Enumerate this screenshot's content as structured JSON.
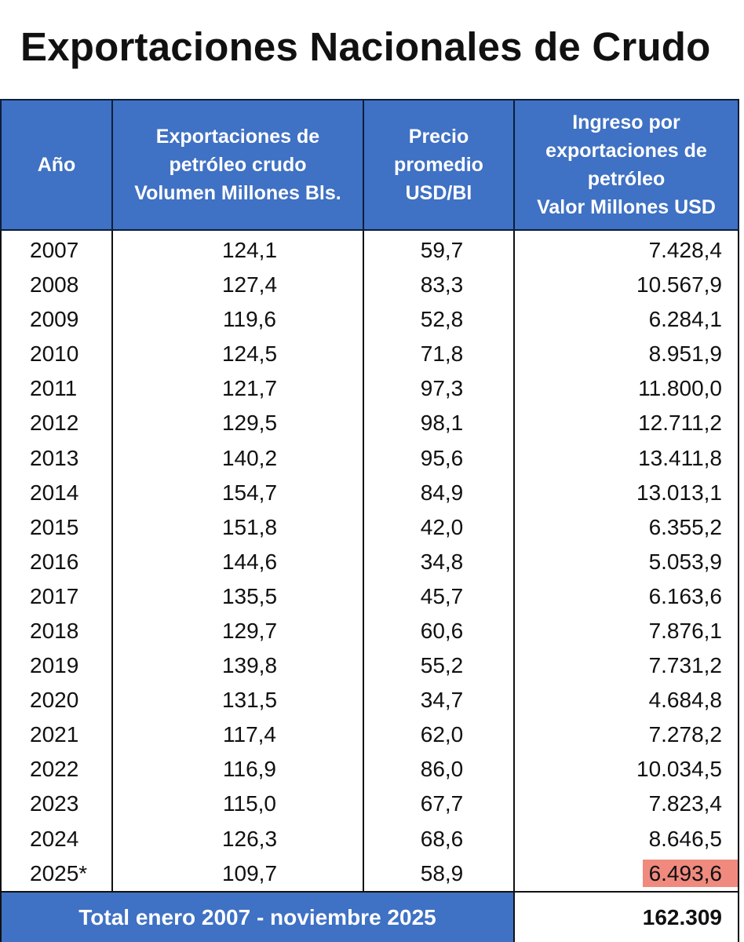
{
  "title": "Exportaciones Nacionales de Crudo",
  "headers": {
    "year": [
      "Año"
    ],
    "volume": [
      "Exportaciones de",
      "petróleo crudo",
      "Volumen Millones Bls."
    ],
    "price": [
      "Precio",
      "promedio",
      "USD/Bl"
    ],
    "value": [
      "Ingreso por",
      "exportaciones de",
      "petróleo",
      "Valor Millones USD"
    ]
  },
  "rows": [
    {
      "year": "2007",
      "volume": "124,1",
      "price": "59,7",
      "value": "7.428,4"
    },
    {
      "year": "2008",
      "volume": "127,4",
      "price": "83,3",
      "value": "10.567,9"
    },
    {
      "year": "2009",
      "volume": "119,6",
      "price": "52,8",
      "value": "6.284,1"
    },
    {
      "year": "2010",
      "volume": "124,5",
      "price": "71,8",
      "value": "8.951,9"
    },
    {
      "year": "2011",
      "volume": "121,7",
      "price": "97,3",
      "value": "11.800,0"
    },
    {
      "year": "2012",
      "volume": "129,5",
      "price": "98,1",
      "value": "12.711,2"
    },
    {
      "year": "2013",
      "volume": "140,2",
      "price": "95,6",
      "value": "13.411,8"
    },
    {
      "year": "2014",
      "volume": "154,7",
      "price": "84,9",
      "value": "13.013,1"
    },
    {
      "year": "2015",
      "volume": "151,8",
      "price": "42,0",
      "value": "6.355,2"
    },
    {
      "year": "2016",
      "volume": "144,6",
      "price": "34,8",
      "value": "5.053,9"
    },
    {
      "year": "2017",
      "volume": "135,5",
      "price": "45,7",
      "value": "6.163,6"
    },
    {
      "year": "2018",
      "volume": "129,7",
      "price": "60,6",
      "value": "7.876,1"
    },
    {
      "year": "2019",
      "volume": "139,8",
      "price": "55,2",
      "value": "7.731,2"
    },
    {
      "year": "2020",
      "volume": "131,5",
      "price": "34,7",
      "value": "4.684,8"
    },
    {
      "year": "2021",
      "volume": "117,4",
      "price": "62,0",
      "value": "7.278,2"
    },
    {
      "year": "2022",
      "volume": "116,9",
      "price": "86,0",
      "value": "10.034,5"
    },
    {
      "year": "2023",
      "volume": "115,0",
      "price": "67,7",
      "value": "7.823,4"
    },
    {
      "year": "2024",
      "volume": "126,3",
      "price": "68,6",
      "value": "8.646,5"
    },
    {
      "year": "2025*",
      "volume": "109,7",
      "price": "58,9",
      "value": "6.493,6",
      "highlighted": true
    }
  ],
  "total": {
    "label": "Total enero 2007 - noviembre 2025",
    "value": "162.309"
  },
  "colors": {
    "header_bg": "#3f71c4",
    "header_text": "#ffffff",
    "highlight": "#f08a7e"
  }
}
